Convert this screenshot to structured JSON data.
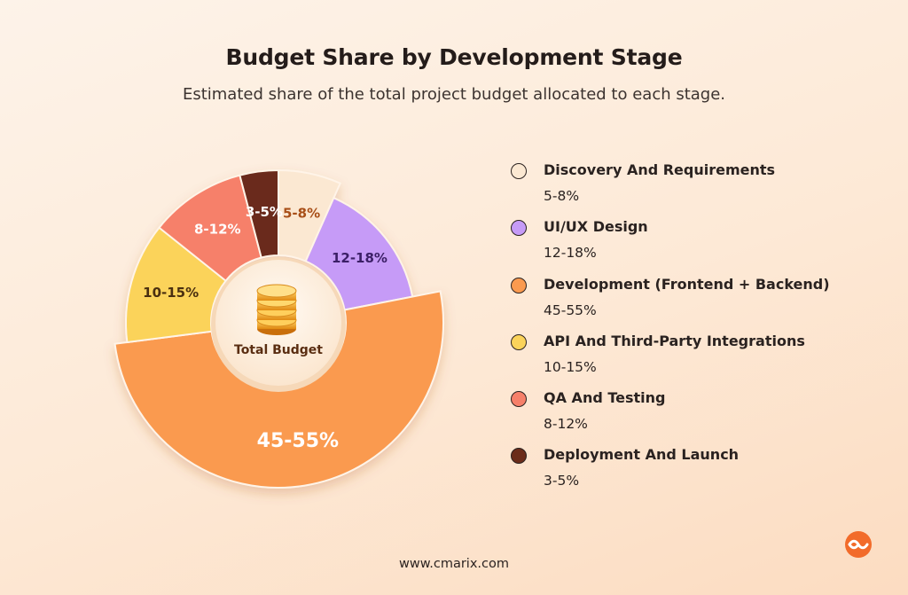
{
  "title": "Budget Share by Development Stage",
  "subtitle": "Estimated share of the total project budget allocated to each stage.",
  "chart_data": {
    "type": "pie",
    "title": "Budget Share by Development Stage",
    "subtitle": "Estimated share of the total project budget allocated to each stage.",
    "center_label": "Total Budget",
    "center_icon": "coin-stack-icon",
    "slices": [
      {
        "label": "Discovery And Requirements",
        "range": "5-8%",
        "value": 6.5,
        "color": "#fbe8d2",
        "text_color": "#a84f18"
      },
      {
        "label": "UI/UX Design",
        "range": "12-18%",
        "value": 15,
        "color": "#c69bf7",
        "text_color": "#3b1f66"
      },
      {
        "label": "Development (Frontend + Backend)",
        "range": "45-55%",
        "value": 50,
        "color": "#fa9a4f",
        "text_color": "#ffffff"
      },
      {
        "label": "API And Third-Party Integrations",
        "range": "10-15%",
        "value": 12.5,
        "color": "#fbd35a",
        "text_color": "#4a2f10"
      },
      {
        "label": "QA And Testing",
        "range": "8-12%",
        "value": 10,
        "color": "#f6806a",
        "text_color": "#ffffff"
      },
      {
        "label": "Deployment And Launch",
        "range": "3-5%",
        "value": 4,
        "color": "#6b2c1a",
        "text_color": "#ffffff"
      }
    ]
  },
  "footer": "www.cmarix.com",
  "logo_icon": "cmarix-logo-icon",
  "colors": {
    "background": "#fdeee0",
    "accent": "#f26b2a"
  }
}
